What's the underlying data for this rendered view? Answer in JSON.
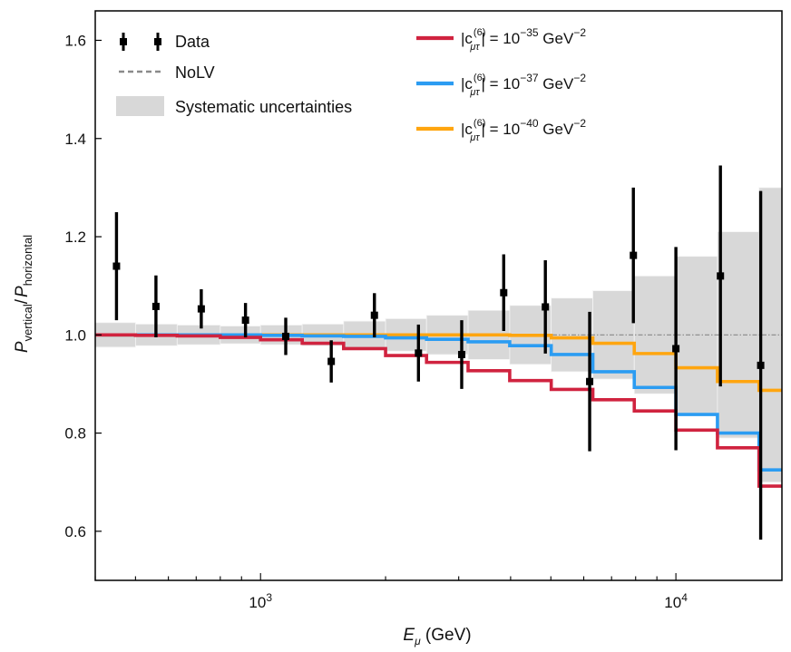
{
  "chart_data": {
    "type": "line",
    "title": "",
    "xlabel": "E_μ (GeV)",
    "xlabel_main": "E",
    "xlabel_sub": "μ",
    "xlabel_unit": " (GeV)",
    "ylabel_p1": "P",
    "ylabel_s1": "vertical",
    "ylabel_slash": "/",
    "ylabel_p2": "P",
    "ylabel_s2": "horizontal",
    "xscale": "log",
    "xlim": [
      400,
      18000
    ],
    "ylim": [
      0.5,
      1.66
    ],
    "y_ticks": [
      0.6,
      0.8,
      1.0,
      1.2,
      1.4,
      1.6
    ],
    "y_tick_labels": [
      "0.6",
      "0.8",
      "1.0",
      "1.2",
      "1.4",
      "1.6"
    ],
    "x_major_ticks": [
      1000,
      10000
    ],
    "x_tick_labels": [
      {
        "base": "10",
        "exp": "3"
      },
      {
        "base": "10",
        "exp": "4"
      }
    ],
    "bin_edges": [
      400,
      500,
      630,
      800,
      1000,
      1260,
      1585,
      2000,
      2510,
      3160,
      3980,
      5010,
      6310,
      7940,
      10000,
      12590,
      15850,
      18000
    ],
    "data": {
      "name": "Data",
      "x": [
        450,
        560,
        720,
        920,
        1150,
        1480,
        1880,
        2400,
        3050,
        3850,
        4850,
        6200,
        7900,
        10000,
        12800,
        16000
      ],
      "y": [
        1.14,
        1.058,
        1.053,
        1.03,
        0.997,
        0.946,
        1.04,
        0.963,
        0.96,
        1.086,
        1.057,
        0.905,
        1.162,
        0.972,
        1.12,
        0.938
      ],
      "err": [
        0.11,
        0.063,
        0.04,
        0.035,
        0.038,
        0.043,
        0.045,
        0.058,
        0.07,
        0.078,
        0.095,
        0.142,
        0.138,
        0.207,
        0.225,
        0.355
      ]
    },
    "nolv": {
      "name": "NoLV",
      "value": 1.0
    },
    "systematics": {
      "name": "Systematic uncertainties",
      "half_width": [
        0.025,
        0.022,
        0.02,
        0.018,
        0.02,
        0.022,
        0.028,
        0.033,
        0.04,
        0.05,
        0.06,
        0.075,
        0.09,
        0.12,
        0.16,
        0.21,
        0.3
      ]
    },
    "series": [
      {
        "name": "|c_μτ^(6)| = 10^−35 GeV^−2",
        "exponent": "−35",
        "color": "#d0233f",
        "values": [
          1.0,
          0.999,
          0.998,
          0.995,
          0.99,
          0.983,
          0.972,
          0.958,
          0.944,
          0.927,
          0.907,
          0.889,
          0.868,
          0.845,
          0.806,
          0.77,
          0.692
        ]
      },
      {
        "name": "|c_μτ^(6)| = 10^−37 GeV^−2",
        "exponent": "−37",
        "color": "#2b9cf2",
        "values": [
          1.0,
          1.0,
          1.0,
          1.0,
          0.999,
          0.998,
          0.997,
          0.994,
          0.991,
          0.986,
          0.978,
          0.96,
          0.925,
          0.893,
          0.838,
          0.8,
          0.725
        ]
      },
      {
        "name": "|c_μτ^(6)| = 10^−40 GeV^−2",
        "exponent": "−40",
        "color": "#ffa50f",
        "values": [
          1.0,
          1.0,
          1.0,
          1.0,
          1.0,
          1.0,
          1.0,
          1.0,
          1.0,
          1.0,
          0.999,
          0.994,
          0.983,
          0.962,
          0.933,
          0.905,
          0.887
        ]
      }
    ],
    "legend_left": [
      {
        "label": "Data"
      },
      {
        "label": "NoLV"
      },
      {
        "label": "Systematic uncertainties"
      }
    ],
    "legend_prefix": "|c",
    "legend_sup": "(6)",
    "legend_sub": "μτ",
    "legend_eq": "| = 10",
    "legend_unit": " GeV",
    "legend_unit_exp": "−2",
    "colors": {
      "data": "#000000",
      "nolv": "#888888",
      "systematics": "#d8d8d8",
      "axis": "#000000"
    }
  }
}
